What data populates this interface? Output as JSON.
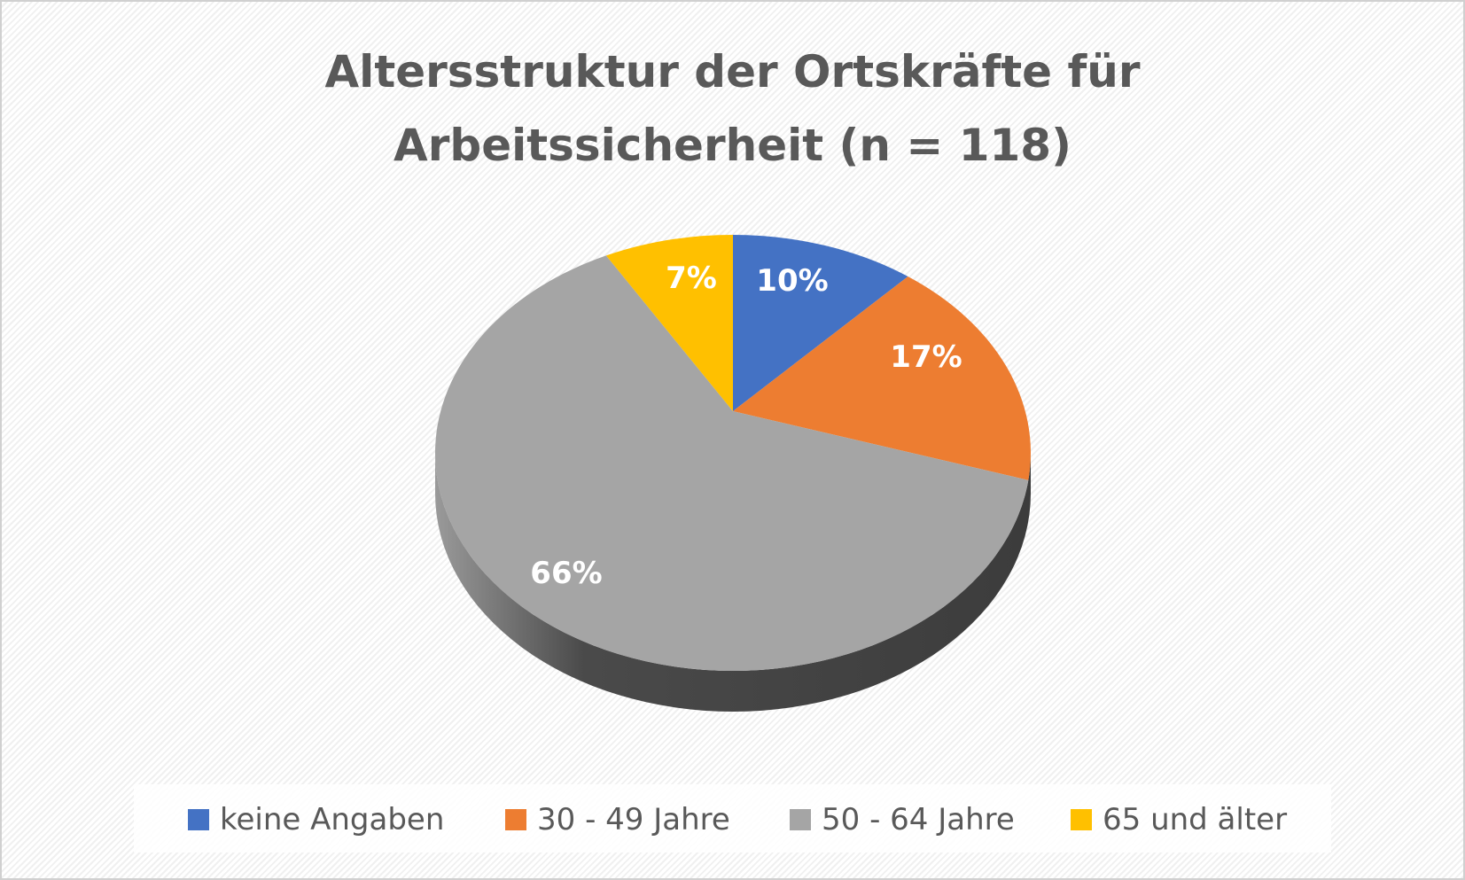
{
  "chart_data": {
    "type": "pie",
    "style": "3d",
    "title_lines": [
      "Altersstruktur der Ortskräfte für",
      "Arbeitssicherheit (n = 118)"
    ],
    "categories": [
      "keine Angaben",
      "30 - 49 Jahre",
      "50 - 64 Jahre",
      "65 und älter"
    ],
    "values": [
      10,
      17,
      66,
      7
    ],
    "data_labels": [
      "10%",
      "17%",
      "66%",
      "7%"
    ],
    "colors": [
      "#4472C4",
      "#ED7D31",
      "#A5A5A5",
      "#FFC000"
    ],
    "legend_position": "bottom"
  }
}
